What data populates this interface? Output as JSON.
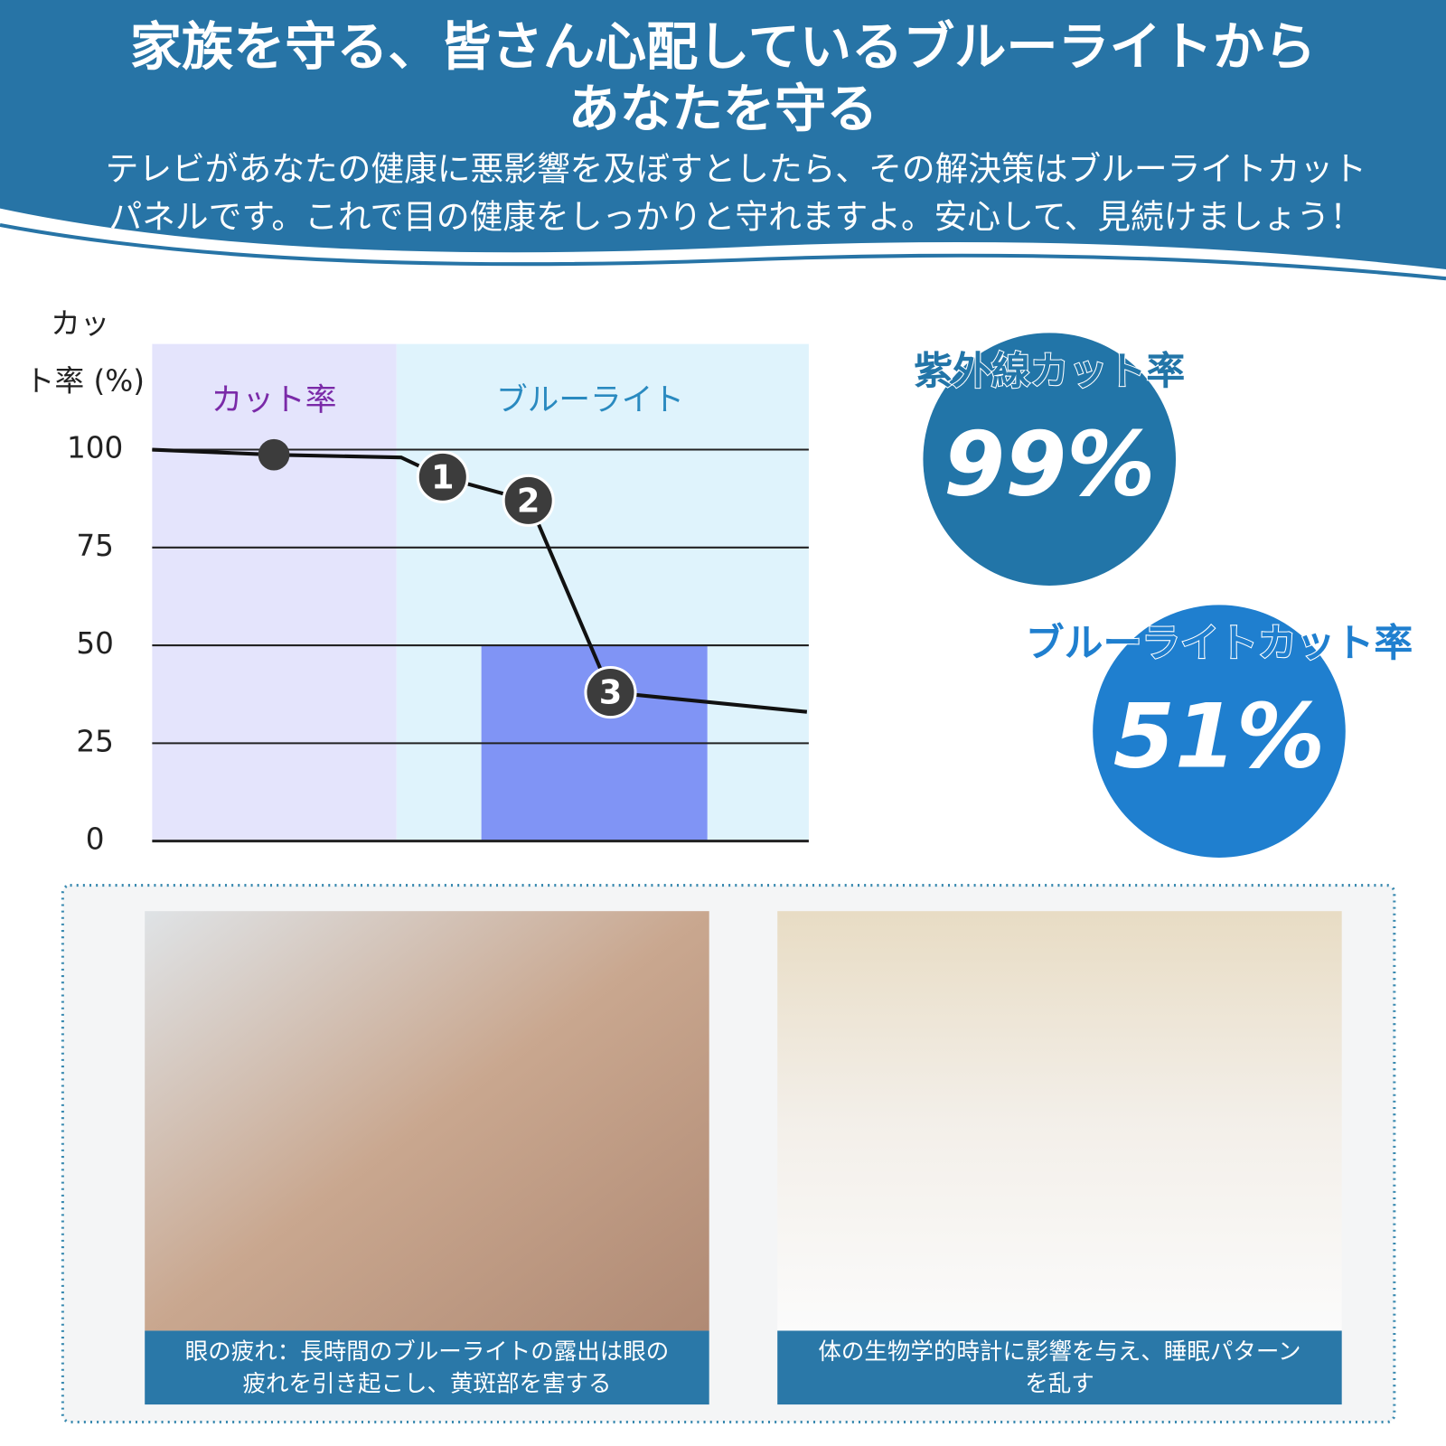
{
  "header": {
    "title": [
      "家族を守る、皆さん心配しているブルーライトから",
      "あなたを守る"
    ],
    "subtitle": [
      "テレビがあなたの健康に悪影響を及ぼすとしたら、その解決策はブルーライトカット",
      "パネルです。これで目の健康をしっかりと守れますよ。安心して、見続けましょう！"
    ]
  },
  "chart_data": {
    "type": "line",
    "ylabel": [
      "カッ",
      "ト率 (%)"
    ],
    "regions": [
      "カット率",
      "ブルーライト"
    ],
    "ylim": [
      0,
      127
    ],
    "yticks": [
      0,
      25,
      50,
      75,
      100
    ],
    "bar_value": 50,
    "bar_color": "#8094f5",
    "values": [
      100,
      98.7,
      98,
      93,
      87,
      38,
      33
    ],
    "color": "#111111",
    "point_labels": [
      null,
      null,
      null,
      "1",
      "2",
      "3",
      null
    ]
  },
  "stats": [
    {
      "label": "紫外線カット率",
      "value": "99%"
    },
    {
      "label": "ブルーライトカット率",
      "value": "51%"
    }
  ],
  "photos": [
    {
      "caption": [
        "眼の疲れ：長時間のブルーライトの露出は眼の",
        "疲れを引き起こし、黄斑部を害する"
      ]
    },
    {
      "caption": [
        "体の生物学的時計に影響を与え、睡眠パターン",
        "を乱す"
      ]
    }
  ]
}
